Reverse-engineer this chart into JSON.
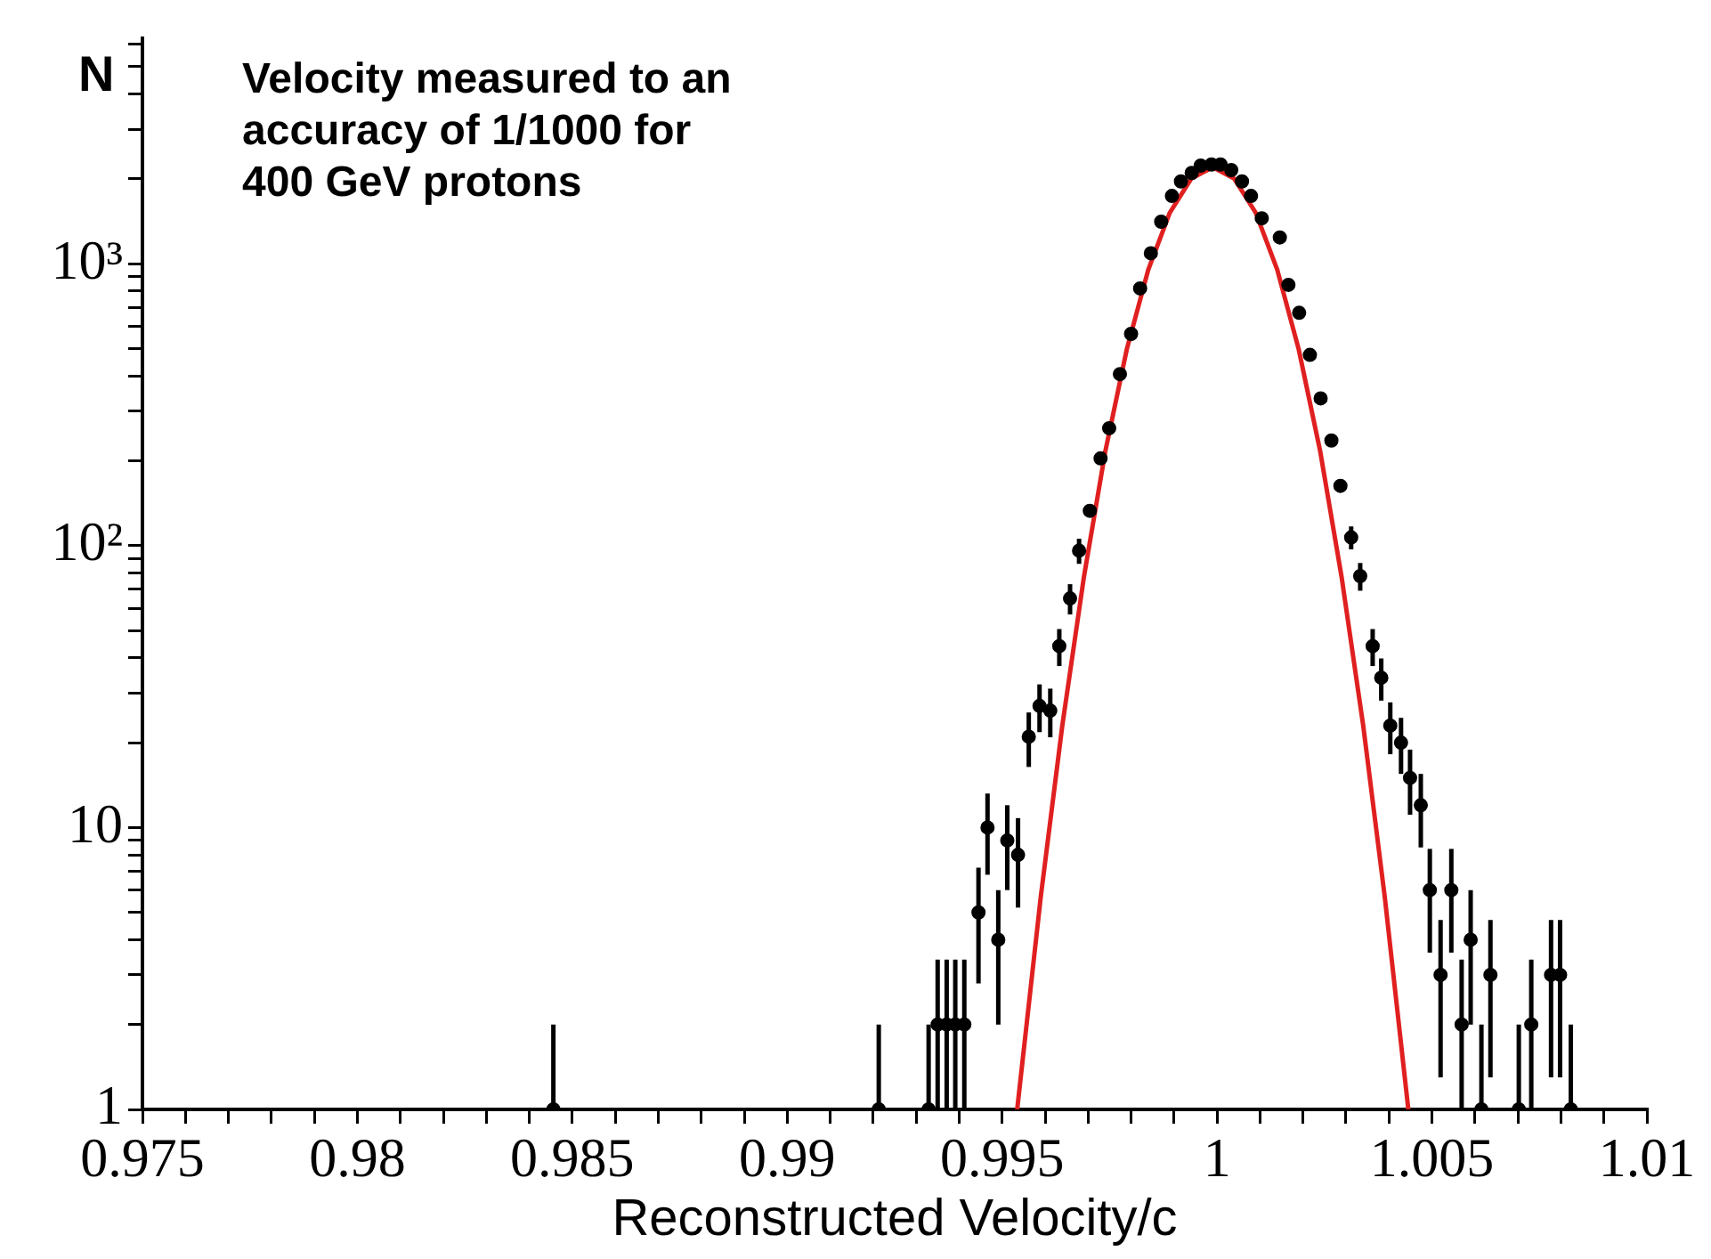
{
  "chart_data": {
    "type": "scatter",
    "xlabel": "Reconstructed Velocity/c",
    "ylabel": "N",
    "log": "y",
    "grid": false,
    "legend": false,
    "annotations": [
      "Velocity measured to an accuracy of 1/1000 for 400 GeV protons"
    ],
    "xlim": [
      0.975,
      1.01
    ],
    "xticks": [
      0.975,
      {
        "value": 0.976,
        "label": null
      },
      {
        "value": 0.977,
        "label": null
      },
      {
        "value": 0.978,
        "label": null
      },
      {
        "value": 0.979,
        "label": null
      },
      0.98,
      {
        "value": 0.981,
        "label": null
      },
      {
        "value": 0.982,
        "label": null
      },
      {
        "value": 0.983,
        "label": null
      },
      {
        "value": 0.984,
        "label": null
      },
      0.985,
      {
        "value": 0.986,
        "label": null
      },
      {
        "value": 0.987,
        "label": null
      },
      {
        "value": 0.988,
        "label": null
      },
      {
        "value": 0.989,
        "label": null
      },
      0.99,
      {
        "value": 0.991,
        "label": null
      },
      {
        "value": 0.992,
        "label": null
      },
      {
        "value": 0.993,
        "label": null
      },
      {
        "value": 0.994,
        "label": null
      },
      0.995,
      {
        "value": 0.996,
        "label": null
      },
      {
        "value": 0.997,
        "label": null
      },
      {
        "value": 0.998,
        "label": null
      },
      {
        "value": 0.999,
        "label": null
      },
      1,
      {
        "value": 1.001,
        "label": null
      },
      {
        "value": 1.002,
        "label": null
      },
      {
        "value": 1.003,
        "label": null
      },
      {
        "value": 1.004,
        "label": null
      },
      1.005,
      {
        "value": 1.006,
        "label": null
      },
      {
        "value": 1.007,
        "label": null
      },
      {
        "value": 1.008,
        "label": null
      },
      {
        "value": 1.009,
        "label": null
      },
      1.01
    ],
    "ylim": [
      1,
      6300
    ],
    "yticks": [
      1,
      {
        "value": 2,
        "label": null
      },
      {
        "value": 3,
        "label": null
      },
      {
        "value": 4,
        "label": null
      },
      {
        "value": 5,
        "label": null
      },
      {
        "value": 6,
        "label": null
      },
      {
        "value": 7,
        "label": null
      },
      {
        "value": 8,
        "label": null
      },
      {
        "value": 9,
        "label": null
      },
      10,
      {
        "value": 20,
        "label": null
      },
      {
        "value": 30,
        "label": null
      },
      {
        "value": 40,
        "label": null
      },
      {
        "value": 50,
        "label": null
      },
      {
        "value": 60,
        "label": null
      },
      {
        "value": 70,
        "label": null
      },
      {
        "value": 80,
        "label": null
      },
      {
        "value": 90,
        "label": null
      },
      {
        "value": 100,
        "label": "10²"
      },
      {
        "value": 200,
        "label": null
      },
      {
        "value": 300,
        "label": null
      },
      {
        "value": 400,
        "label": null
      },
      {
        "value": 500,
        "label": null
      },
      {
        "value": 600,
        "label": null
      },
      {
        "value": 700,
        "label": null
      },
      {
        "value": 800,
        "label": null
      },
      {
        "value": 900,
        "label": null
      },
      {
        "value": 1000,
        "label": "10³"
      },
      {
        "value": 2000,
        "label": null
      },
      {
        "value": 3000,
        "label": null
      },
      {
        "value": 4000,
        "label": null
      },
      {
        "value": 5000,
        "label": null
      },
      {
        "value": 6000,
        "label": null
      }
    ],
    "series": [
      {
        "color": "#000000",
        "marker": "circle",
        "x": [
          0.98456,
          0.99213,
          0.99329,
          0.9935,
          0.99371,
          0.99391,
          0.99412,
          0.99445,
          0.99466,
          0.99491,
          0.99512,
          0.99537,
          0.99562,
          0.99587,
          0.99612,
          0.99633,
          0.99658,
          0.99679,
          0.99704,
          0.99729,
          0.99749,
          0.99774,
          0.998,
          0.99821,
          0.99846,
          0.9987,
          0.99895,
          0.99916,
          0.99941,
          0.99962,
          0.99987,
          1.00008,
          1.00033,
          1.00058,
          1.00079,
          1.00104,
          1.00146,
          1.00166,
          1.00191,
          1.00216,
          1.00241,
          1.00266,
          1.00287,
          1.00312,
          1.00333,
          1.00362,
          1.00382,
          1.00403,
          1.00428,
          1.00449,
          1.00474,
          1.00495,
          1.0052,
          1.00545,
          1.00569,
          1.0059,
          1.00615,
          1.00636,
          1.00702,
          1.00731,
          1.00777,
          1.00798,
          1.00823
        ],
        "values": [
          1,
          1,
          1,
          2,
          2,
          2,
          2,
          5,
          10,
          4,
          9,
          8,
          21,
          27,
          26,
          44,
          65,
          96,
          133,
          204,
          261,
          406,
          564,
          818,
          1090,
          1410,
          1740,
          1960,
          2100,
          2230,
          2250,
          2250,
          2150,
          1960,
          1740,
          1450,
          1240,
          842,
          670,
          475,
          333,
          236,
          163,
          107,
          78,
          44,
          34,
          23,
          20,
          15,
          12,
          6,
          3,
          6,
          2,
          4,
          1,
          3,
          1,
          2,
          3,
          3,
          1
        ],
        "errors": [
          [
            1,
            2
          ],
          [
            1,
            2
          ],
          [
            1,
            2
          ],
          [
            1,
            3.4
          ],
          [
            1,
            3.4
          ],
          [
            1,
            3.4
          ],
          [
            1,
            3.4
          ],
          2.2,
          3.2,
          2,
          3,
          2.8,
          4.6,
          5.2,
          5.1,
          6.6,
          8,
          9.8,
          null,
          null,
          null,
          null,
          null,
          null,
          null,
          null,
          null,
          null,
          null,
          null,
          null,
          null,
          null,
          null,
          null,
          null,
          null,
          null,
          null,
          null,
          null,
          null,
          null,
          10,
          8.8,
          6.6,
          5.8,
          4.8,
          4.5,
          3.9,
          3.5,
          2.4,
          1.7,
          2.4,
          [
            1,
            3.4
          ],
          2,
          [
            1,
            2
          ],
          1.7,
          [
            1,
            2
          ],
          [
            1,
            3.4
          ],
          1.7,
          1.7,
          [
            1,
            2
          ]
        ]
      },
      {
        "type": "line",
        "color": "#e02020",
        "x": [
          0.99535,
          0.9959,
          0.9964,
          0.9969,
          0.9974,
          0.9979,
          0.9984,
          0.9989,
          0.9994,
          0.9999,
          1.0004,
          1.0009,
          1.0014,
          1.0019,
          1.0024,
          1.0029,
          1.0034,
          1.0039,
          1.00445
        ],
        "values": [
          1,
          5.7,
          23,
          77,
          216,
          497,
          953,
          1517,
          2005,
          2200,
          2005,
          1517,
          953,
          497,
          216,
          77,
          23,
          5.7,
          1
        ]
      }
    ]
  }
}
